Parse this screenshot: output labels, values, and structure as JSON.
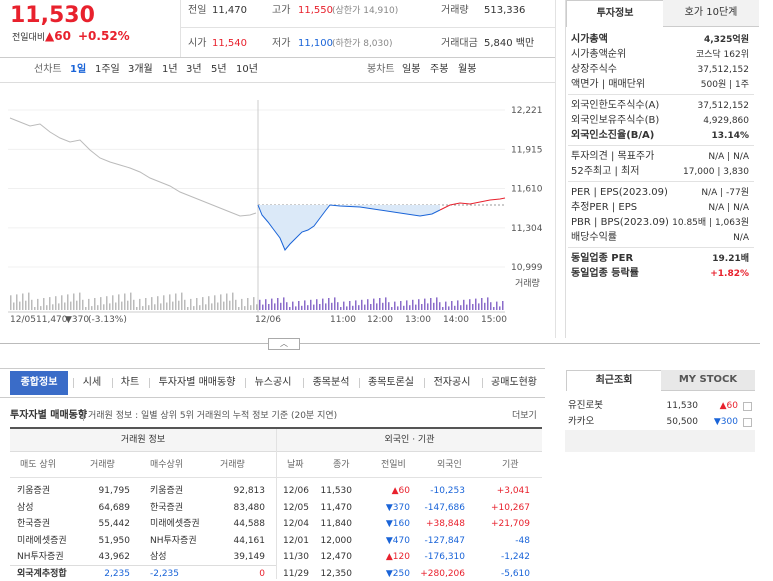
{
  "quote": {
    "price": "11,530",
    "change_label": "전일대비",
    "change": "▲60",
    "change_rate": "+0.52%"
  },
  "summary": [
    {
      "label": "전일",
      "value": "11,470"
    },
    {
      "label": "고가",
      "value": "11,550",
      "note": "(상한가 14,910)"
    },
    {
      "label": "거래량",
      "value": "513,336"
    },
    {
      "label": "시가",
      "value": "11,540"
    },
    {
      "label": "저가",
      "value": "11,100",
      "note": "(하한가 8,030)"
    },
    {
      "label": "거래대금",
      "value": "5,840 백만"
    }
  ],
  "periods": {
    "line_label": "선차트",
    "line_items": [
      "1일",
      "1주일",
      "3개월",
      "1년",
      "3년",
      "5년",
      "10년"
    ],
    "candle_label": "봉차트",
    "candle_items": [
      "일봉",
      "주봉",
      "월봉"
    ]
  },
  "chart": {
    "yticks": [
      {
        "value": 12221,
        "label": "12,221"
      },
      {
        "value": 11915,
        "label": "11,915"
      },
      {
        "value": 11610,
        "label": "11,610"
      },
      {
        "value": 11304,
        "label": "11,304"
      },
      {
        "value": 10999,
        "label": "10,999"
      }
    ],
    "ylim": [
      10999,
      12221
    ],
    "xlabels": [
      "12/06",
      "11:00",
      "12:00",
      "13:00",
      "14:00",
      "15:00"
    ],
    "prev_date": "12/05",
    "prev_price": "11,470",
    "prev_change": "▼370",
    "prev_rate": "(-3.13%)",
    "volume_label": "거래량"
  },
  "invest": {
    "tabs": [
      "투자정보",
      "호가 10단계"
    ],
    "groups": [
      [
        {
          "label": "시가총액",
          "value": "4,325억원"
        },
        {
          "label": "시가총액순위",
          "value": "코스닥 162위"
        },
        {
          "label": "상장주식수",
          "value": "37,512,152"
        },
        {
          "label": "액면가 | 매매단위",
          "value": "500원 | 1주"
        }
      ],
      [
        {
          "label": "외국인한도주식수(A)",
          "value": "37,512,152"
        },
        {
          "label": "외국인보유주식수(B)",
          "value": "4,929,860"
        },
        {
          "label": "외국인소진율(B/A)",
          "value": "13.14%"
        }
      ],
      [
        {
          "label": "투자의견 | 목표주가",
          "value": "N/A | N/A"
        },
        {
          "label": "52주최고 | 최저",
          "value": "17,000 | 3,830"
        }
      ],
      [
        {
          "label": "PER | EPS(2023.09)",
          "value": "N/A | -77원"
        },
        {
          "label": "추정PER | EPS",
          "value": "N/A | N/A"
        },
        {
          "label": "PBR | BPS(2023.09)",
          "value": "10.85배 | 1,063원"
        },
        {
          "label": "배당수익률",
          "value": "N/A"
        }
      ],
      [
        {
          "label": "동일업종 PER",
          "value": "19.21배"
        },
        {
          "label": "동일업종 등락률",
          "value": "+1.82%"
        }
      ]
    ]
  },
  "tabs": [
    "종합정보",
    "시세",
    "차트",
    "투자자별 매매동향",
    "뉴스공시",
    "종목분석",
    "종목토론실",
    "전자공시",
    "공매도현황"
  ],
  "trade": {
    "title": "투자자별 매매동향",
    "desc": "거래원 정보 : 일별 상위 5위 거래원의 누적 정보 기준 (20분 지연)",
    "more": "더보기",
    "left_header": "거래원 정보",
    "left_columns": [
      "매도 상위",
      "거래량",
      "매수상위",
      "거래량"
    ],
    "left_rows": [
      [
        "키움증권",
        "91,795",
        "키움증권",
        "92,813"
      ],
      [
        "삼성",
        "64,689",
        "한국증권",
        "83,480"
      ],
      [
        "한국증권",
        "55,442",
        "미래에셋증권",
        "44,588"
      ],
      [
        "미래에셋증권",
        "51,950",
        "NH투자증권",
        "44,161"
      ],
      [
        "NH투자증권",
        "43,962",
        "삼성",
        "39,149"
      ],
      [
        "외국계추정합",
        "2,235",
        "-2,235",
        "0"
      ]
    ],
    "right_header": "외국인 · 기관",
    "right_columns": [
      "날짜",
      "종가",
      "전일비",
      "외국인",
      "기관"
    ],
    "right_rows": [
      [
        "12/06",
        "11,530",
        "▲60",
        "-10,253",
        "+3,041"
      ],
      [
        "12/05",
        "11,470",
        "▼370",
        "-147,686",
        "+10,267"
      ],
      [
        "12/04",
        "11,840",
        "▼160",
        "+38,848",
        "+21,709"
      ],
      [
        "12/01",
        "12,000",
        "▼470",
        "-127,847",
        "-48"
      ],
      [
        "11/30",
        "12,470",
        "▲120",
        "-176,310",
        "-1,242"
      ],
      [
        "11/29",
        "12,350",
        "▼250",
        "+280,206",
        "-5,610"
      ]
    ]
  },
  "recent": {
    "tabs": [
      "최근조회",
      "MY STOCK"
    ],
    "rows": [
      [
        "유진로봇",
        "11,530",
        "▲60"
      ],
      [
        "카카오",
        "50,500",
        "▼300"
      ]
    ]
  }
}
